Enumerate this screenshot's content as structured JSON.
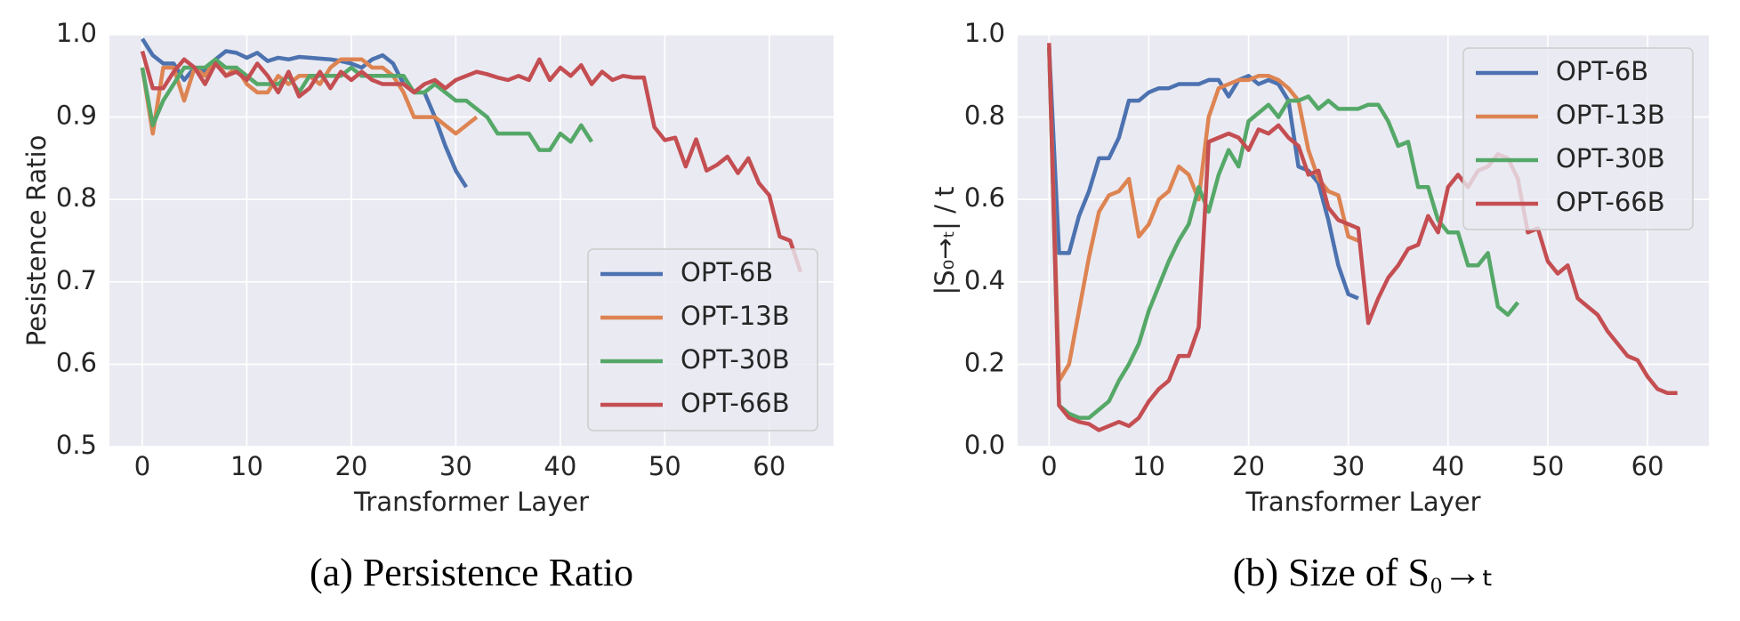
{
  "chart_data": [
    {
      "type": "line",
      "caption": "(a) Persistence Ratio",
      "xlabel": "Transformer Layer",
      "ylabel": "Pesistence Ratio",
      "x": [
        0,
        1,
        2,
        3,
        4,
        5,
        6,
        7,
        8,
        9,
        10,
        11,
        12,
        13,
        14,
        15,
        16,
        17,
        18,
        19,
        20,
        21,
        22,
        23,
        24,
        25,
        26,
        27,
        28,
        29,
        30,
        31,
        32,
        33,
        34,
        35,
        36,
        37,
        38,
        39,
        40,
        41,
        42,
        43,
        44,
        45,
        46,
        47,
        48,
        49,
        50,
        51,
        52,
        53,
        54,
        55,
        56,
        57,
        58,
        59,
        60,
        61,
        62,
        63
      ],
      "xlim": [
        -3.15,
        66.15
      ],
      "xticks": [
        0,
        10,
        20,
        30,
        40,
        50,
        60
      ],
      "ylim": [
        0.5,
        1
      ],
      "yticks": [
        0.5,
        0.6,
        0.7,
        0.8,
        0.9,
        {
          "value": 1,
          "label": "1.0"
        }
      ],
      "grid": true,
      "legend": "lower right",
      "series": [
        {
          "name": "OPT-6B",
          "color": "#4c72b0",
          "values": [
            0.995,
            0.975,
            0.965,
            0.965,
            0.945,
            0.96,
            0.955,
            0.97,
            0.98,
            0.978,
            0.972,
            0.978,
            0.968,
            0.972,
            0.97,
            0.973,
            0.972,
            0.971,
            0.97,
            0.968,
            0.965,
            0.96,
            0.97,
            0.975,
            0.965,
            0.94,
            0.93,
            0.93,
            0.9,
            0.865,
            0.835,
            0.815,
            null,
            null,
            null,
            null,
            null,
            null,
            null,
            null,
            null,
            null,
            null,
            null,
            null,
            null,
            null,
            null,
            null,
            null,
            null,
            null,
            null,
            null,
            null,
            null,
            null,
            null,
            null,
            null,
            null,
            null,
            null,
            null
          ]
        },
        {
          "name": "OPT-13B",
          "color": "#dd8452",
          "values": [
            0.96,
            0.88,
            0.96,
            0.96,
            0.92,
            0.96,
            0.95,
            0.97,
            0.95,
            0.96,
            0.94,
            0.93,
            0.93,
            0.95,
            0.94,
            0.95,
            0.95,
            0.94,
            0.96,
            0.97,
            0.97,
            0.97,
            0.96,
            0.96,
            0.95,
            0.93,
            0.9,
            0.9,
            0.9,
            0.89,
            0.88,
            0.89,
            0.9,
            null,
            null,
            null,
            null,
            null,
            null,
            null,
            null,
            null,
            null,
            null,
            null,
            null,
            null,
            null,
            null,
            null,
            null,
            null,
            null,
            null,
            null,
            null,
            null,
            null,
            null,
            null,
            null,
            null,
            null,
            null
          ]
        },
        {
          "name": "OPT-30B",
          "color": "#55a868",
          "values": [
            0.96,
            0.89,
            0.92,
            0.94,
            0.96,
            0.96,
            0.96,
            0.97,
            0.96,
            0.96,
            0.95,
            0.94,
            0.94,
            0.94,
            0.95,
            0.93,
            0.95,
            0.95,
            0.95,
            0.95,
            0.96,
            0.95,
            0.95,
            0.95,
            0.95,
            0.95,
            0.93,
            0.93,
            0.94,
            0.93,
            0.92,
            0.92,
            0.91,
            0.9,
            0.88,
            0.88,
            0.88,
            0.88,
            0.86,
            0.86,
            0.88,
            0.87,
            0.89,
            0.87,
            null,
            null,
            null,
            null,
            null,
            null,
            null,
            null,
            null,
            null,
            null,
            null,
            null,
            null,
            null,
            null,
            null,
            null,
            null,
            null
          ]
        },
        {
          "name": "OPT-66B",
          "color": "#c44e52",
          "values": [
            0.98,
            0.935,
            0.935,
            0.955,
            0.97,
            0.96,
            0.94,
            0.965,
            0.95,
            0.955,
            0.945,
            0.965,
            0.95,
            0.93,
            0.955,
            0.925,
            0.935,
            0.955,
            0.935,
            0.955,
            0.945,
            0.955,
            0.945,
            0.94,
            0.94,
            0.94,
            0.93,
            0.94,
            0.945,
            0.935,
            0.945,
            0.95,
            0.955,
            0.952,
            0.948,
            0.945,
            0.95,
            0.945,
            0.97,
            0.945,
            0.96,
            0.95,
            0.963,
            0.94,
            0.955,
            0.945,
            0.95,
            0.948,
            0.948,
            0.888,
            0.872,
            0.875,
            0.84,
            0.873,
            0.835,
            0.842,
            0.852,
            0.832,
            0.85,
            0.82,
            0.805,
            0.755,
            0.75,
            0.712
          ]
        }
      ]
    },
    {
      "type": "line",
      "caption": "(b) Size of S₀→ₜ",
      "xlabel": "Transformer Layer",
      "ylabel": "|S₀→ₜ| / t",
      "x": [
        0,
        1,
        2,
        3,
        4,
        5,
        6,
        7,
        8,
        9,
        10,
        11,
        12,
        13,
        14,
        15,
        16,
        17,
        18,
        19,
        20,
        21,
        22,
        23,
        24,
        25,
        26,
        27,
        28,
        29,
        30,
        31,
        32,
        33,
        34,
        35,
        36,
        37,
        38,
        39,
        40,
        41,
        42,
        43,
        44,
        45,
        46,
        47,
        48,
        49,
        50,
        51,
        52,
        53,
        54,
        55,
        56,
        57,
        58,
        59,
        60,
        61,
        62,
        63
      ],
      "xlim": [
        -3.15,
        66.15
      ],
      "xticks": [
        0,
        10,
        20,
        30,
        40,
        50,
        60
      ],
      "ylim": [
        0,
        1
      ],
      "yticks": [
        {
          "value": 0,
          "label": "0.0"
        },
        0.2,
        0.4,
        0.6,
        0.8,
        {
          "value": 1,
          "label": "1.0"
        }
      ],
      "grid": true,
      "legend": "upper right",
      "series": [
        {
          "name": "OPT-6B",
          "color": "#4c72b0",
          "values": [
            0.97,
            0.47,
            0.47,
            0.56,
            0.62,
            0.7,
            0.7,
            0.75,
            0.84,
            0.84,
            0.86,
            0.87,
            0.87,
            0.88,
            0.88,
            0.88,
            0.89,
            0.89,
            0.85,
            0.89,
            0.9,
            0.88,
            0.89,
            0.88,
            0.84,
            0.68,
            0.67,
            0.64,
            0.55,
            0.44,
            0.37,
            0.36,
            null,
            null,
            null,
            null,
            null,
            null,
            null,
            null,
            null,
            null,
            null,
            null,
            null,
            null,
            null,
            null,
            null,
            null,
            null,
            null,
            null,
            null,
            null,
            null,
            null,
            null,
            null,
            null,
            null,
            null,
            null,
            null
          ]
        },
        {
          "name": "OPT-13B",
          "color": "#dd8452",
          "values": [
            0.97,
            0.16,
            0.2,
            0.33,
            0.46,
            0.57,
            0.61,
            0.62,
            0.65,
            0.51,
            0.54,
            0.6,
            0.62,
            0.68,
            0.66,
            0.6,
            0.8,
            0.87,
            0.88,
            0.89,
            0.89,
            0.9,
            0.9,
            0.89,
            0.87,
            0.84,
            0.72,
            0.65,
            0.62,
            0.61,
            0.51,
            0.5,
            null,
            null,
            null,
            null,
            null,
            null,
            null,
            null,
            null,
            null,
            null,
            null,
            null,
            null,
            null,
            null,
            null,
            null,
            null,
            null,
            null,
            null,
            null,
            null,
            null,
            null,
            null,
            null,
            null,
            null,
            null,
            null
          ]
        },
        {
          "name": "OPT-30B",
          "color": "#55a868",
          "values": [
            0.97,
            0.1,
            0.08,
            0.07,
            0.07,
            0.09,
            0.11,
            0.16,
            0.2,
            0.25,
            0.33,
            0.39,
            0.45,
            0.5,
            0.54,
            0.63,
            0.57,
            0.66,
            0.72,
            0.68,
            0.79,
            0.81,
            0.83,
            0.8,
            0.84,
            0.84,
            0.85,
            0.82,
            0.84,
            0.82,
            0.82,
            0.82,
            0.83,
            0.83,
            0.79,
            0.73,
            0.74,
            0.63,
            0.63,
            0.55,
            0.52,
            0.52,
            0.44,
            0.44,
            0.47,
            0.34,
            0.32,
            0.35,
            null,
            null,
            null,
            null,
            null,
            null,
            null,
            null,
            null,
            null,
            null,
            null,
            null,
            null,
            null,
            null
          ]
        },
        {
          "name": "OPT-66B",
          "color": "#c44e52",
          "values": [
            0.98,
            0.1,
            0.07,
            0.06,
            0.055,
            0.04,
            0.05,
            0.06,
            0.05,
            0.07,
            0.11,
            0.14,
            0.16,
            0.22,
            0.22,
            0.29,
            0.74,
            0.75,
            0.76,
            0.75,
            0.72,
            0.77,
            0.76,
            0.78,
            0.75,
            0.73,
            0.66,
            0.67,
            0.58,
            0.55,
            0.54,
            0.53,
            0.3,
            0.36,
            0.41,
            0.44,
            0.48,
            0.49,
            0.56,
            0.52,
            0.63,
            0.66,
            0.63,
            0.67,
            0.68,
            0.71,
            0.7,
            0.65,
            0.52,
            0.53,
            0.45,
            0.42,
            0.44,
            0.36,
            0.34,
            0.32,
            0.28,
            0.25,
            0.22,
            0.21,
            0.17,
            0.14,
            0.13,
            0.13
          ]
        }
      ]
    }
  ]
}
